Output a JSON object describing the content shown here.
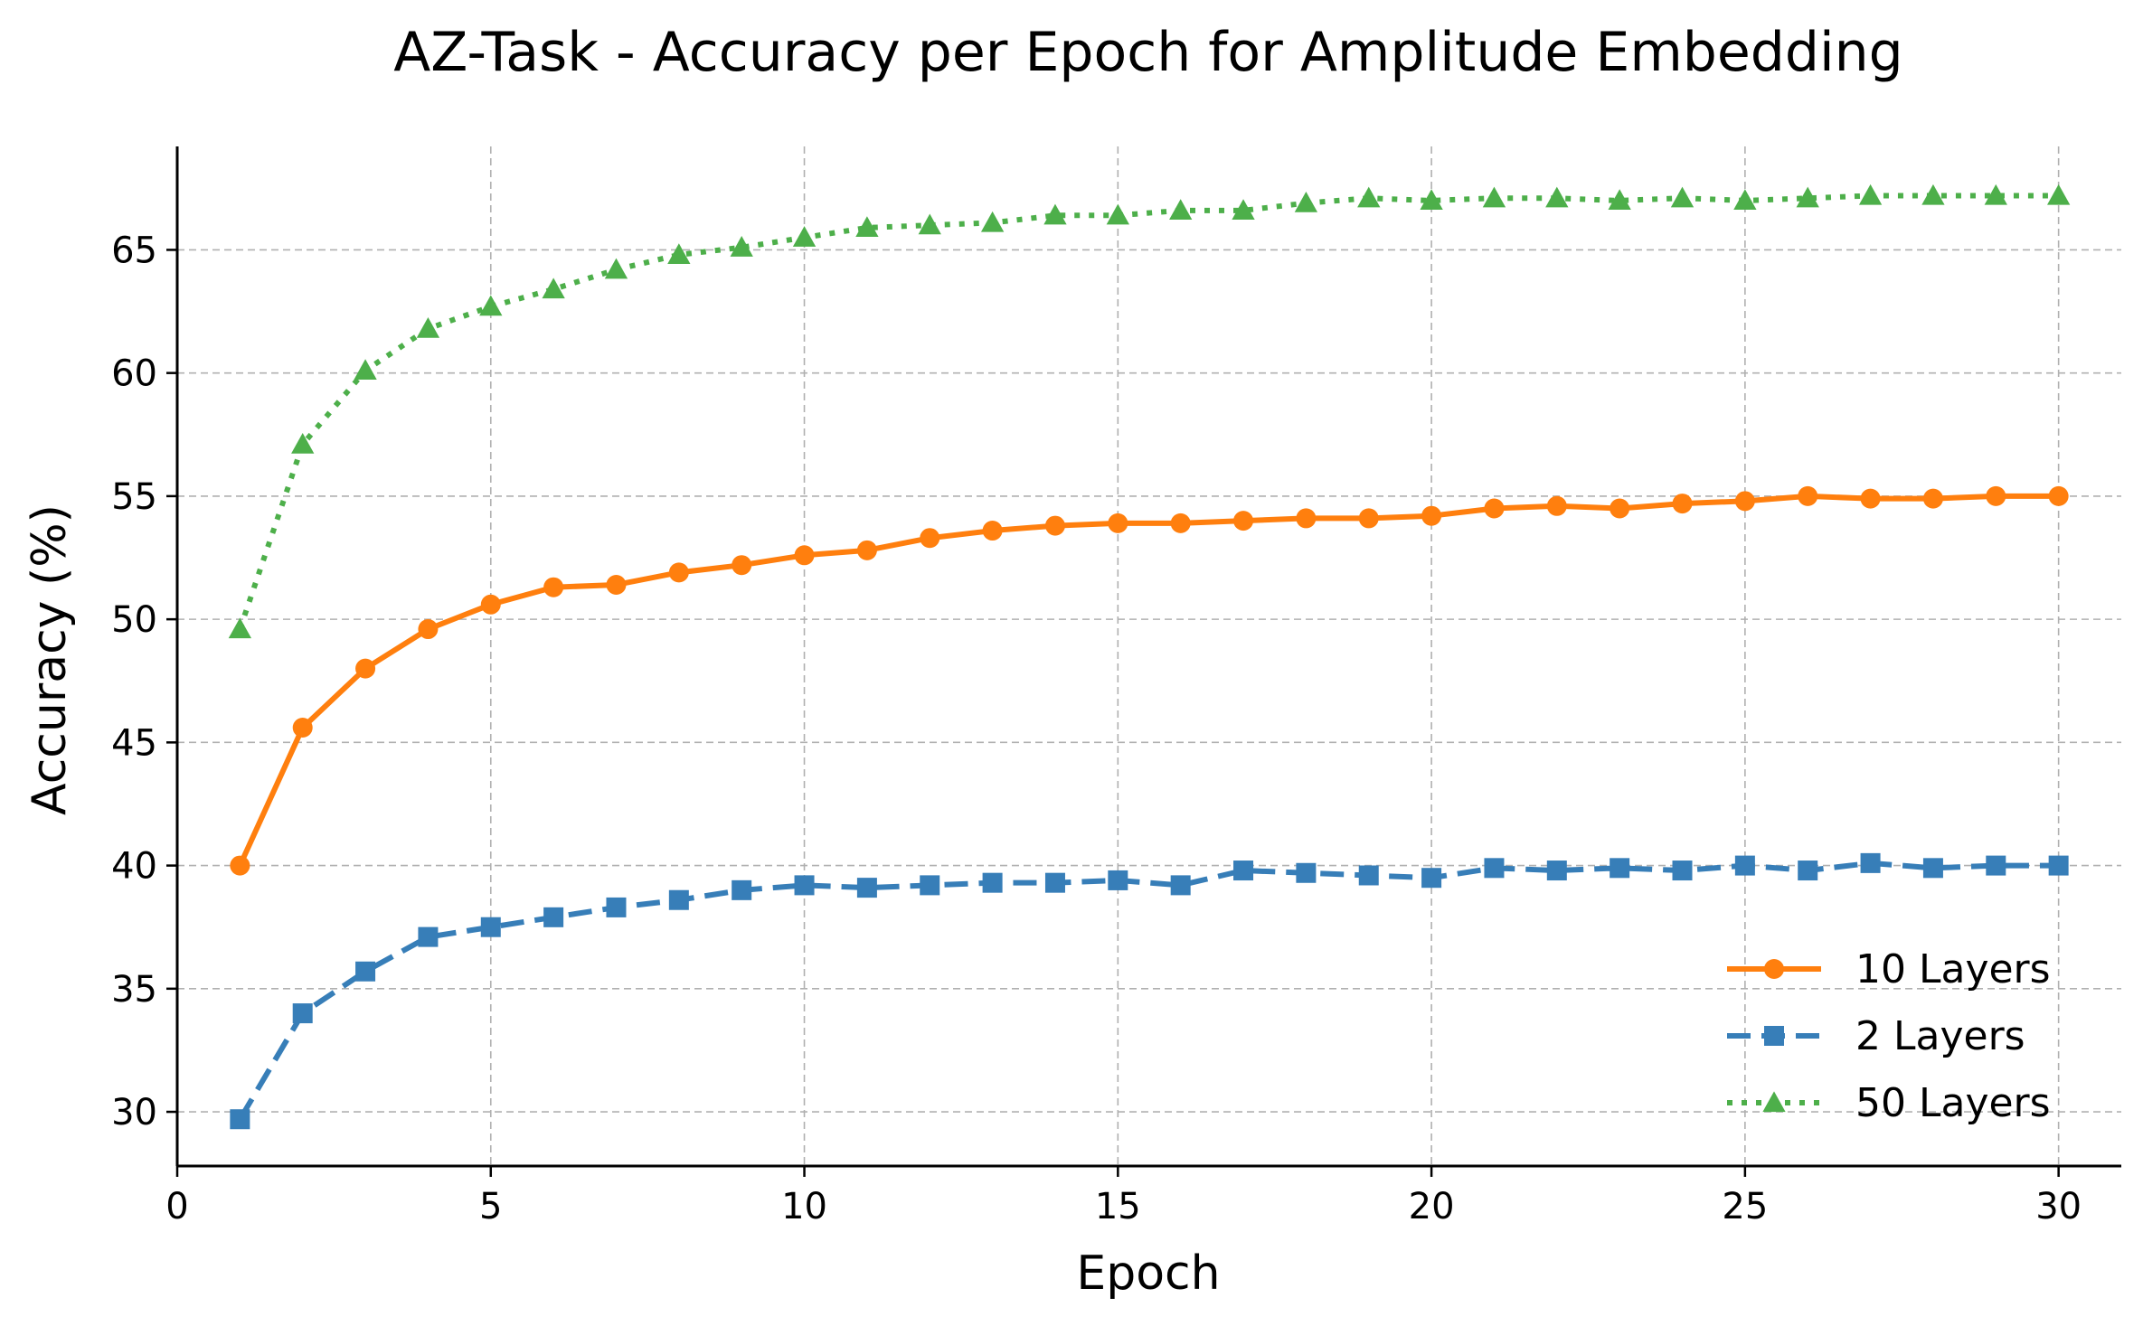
{
  "chart_data": {
    "type": "line",
    "title": "AZ-Task - Accuracy per Epoch for Amplitude Embedding",
    "xlabel": "Epoch",
    "ylabel": "Accuracy (%)",
    "xlim": [
      0,
      31
    ],
    "ylim": [
      27.8,
      69.2
    ],
    "xticks": [
      0,
      5,
      10,
      15,
      20,
      25,
      30
    ],
    "yticks": [
      30,
      35,
      40,
      45,
      50,
      55,
      60,
      65
    ],
    "grid": true,
    "legend_position": "lower-right",
    "x": [
      1,
      2,
      3,
      4,
      5,
      6,
      7,
      8,
      9,
      10,
      11,
      12,
      13,
      14,
      15,
      16,
      17,
      18,
      19,
      20,
      21,
      22,
      23,
      24,
      25,
      26,
      27,
      28,
      29,
      30
    ],
    "series": [
      {
        "name": "10 Layers",
        "color": "#ff7f0e",
        "marker": "circle",
        "linestyle": "solid",
        "values": [
          40.0,
          45.6,
          48.0,
          49.6,
          50.6,
          51.3,
          51.4,
          51.9,
          52.2,
          52.6,
          52.8,
          53.3,
          53.6,
          53.8,
          53.9,
          53.9,
          54.0,
          54.1,
          54.1,
          54.2,
          54.5,
          54.6,
          54.5,
          54.7,
          54.8,
          55.0,
          54.9,
          54.9,
          55.0,
          55.0
        ]
      },
      {
        "name": "2 Layers",
        "color": "#377eb8",
        "marker": "square",
        "linestyle": "dashed",
        "values": [
          29.7,
          34.0,
          35.7,
          37.1,
          37.5,
          37.9,
          38.3,
          38.6,
          39.0,
          39.2,
          39.1,
          39.2,
          39.3,
          39.3,
          39.4,
          39.2,
          39.8,
          39.7,
          39.6,
          39.5,
          39.9,
          39.8,
          39.9,
          39.8,
          40.0,
          39.8,
          40.1,
          39.9,
          40.0,
          40.0
        ]
      },
      {
        "name": "50 Layers",
        "color": "#4daf4a",
        "marker": "triangle",
        "linestyle": "dotted",
        "values": [
          49.6,
          57.1,
          60.1,
          61.8,
          62.7,
          63.4,
          64.2,
          64.8,
          65.1,
          65.5,
          65.9,
          66.0,
          66.1,
          66.4,
          66.4,
          66.6,
          66.6,
          66.9,
          67.1,
          67.0,
          67.1,
          67.1,
          67.0,
          67.1,
          67.0,
          67.1,
          67.2,
          67.2,
          67.2,
          67.2
        ]
      }
    ]
  }
}
